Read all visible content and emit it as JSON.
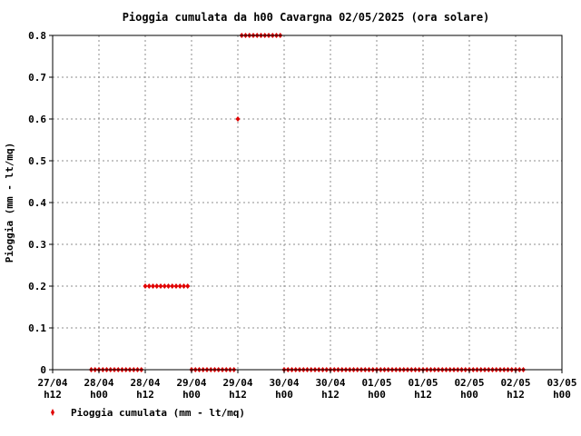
{
  "chart_data": {
    "type": "scatter",
    "title": "Pioggia cumulata da h00 Cavargna 02/05/2025 (ora solare)",
    "xlabel": "",
    "ylabel": "Pioggia (mm - lt/mq)",
    "ylim": [
      0,
      0.8
    ],
    "yticks": [
      "0",
      "0.1",
      "0.2",
      "0.3",
      "0.4",
      "0.5",
      "0.6",
      "0.7",
      "0.8"
    ],
    "xticks": [
      {
        "date": "27/04",
        "hour": "h12"
      },
      {
        "date": "28/04",
        "hour": "h00"
      },
      {
        "date": "28/04",
        "hour": "h12"
      },
      {
        "date": "29/04",
        "hour": "h00"
      },
      {
        "date": "29/04",
        "hour": "h12"
      },
      {
        "date": "30/04",
        "hour": "h00"
      },
      {
        "date": "30/04",
        "hour": "h12"
      },
      {
        "date": "01/05",
        "hour": "h00"
      },
      {
        "date": "01/05",
        "hour": "h12"
      },
      {
        "date": "02/05",
        "hour": "h00"
      },
      {
        "date": "02/05",
        "hour": "h12"
      },
      {
        "date": "03/05",
        "hour": "h00"
      }
    ],
    "xlim": [
      "27/04 h12",
      "03/05 h00"
    ],
    "grid": true,
    "legend": "bottom-left",
    "color": "#e00000",
    "series": [
      {
        "name": "Pioggia cumulata (mm - lt/mq)",
        "segments": [
          {
            "from": "27/04 h22",
            "to": "28/04 h11",
            "value": 0
          },
          {
            "from": "28/04 h12",
            "to": "28/04 h23",
            "value": 0.2
          },
          {
            "from": "29/04 h00",
            "to": "29/04 h11",
            "value": 0
          },
          {
            "from": "29/04 h12",
            "to": "29/04 h12",
            "value": 0.6
          },
          {
            "from": "29/04 h13",
            "to": "29/04 h23",
            "value": 0.8
          },
          {
            "from": "30/04 h00",
            "to": "02/05 h14",
            "value": 0
          }
        ]
      }
    ]
  }
}
